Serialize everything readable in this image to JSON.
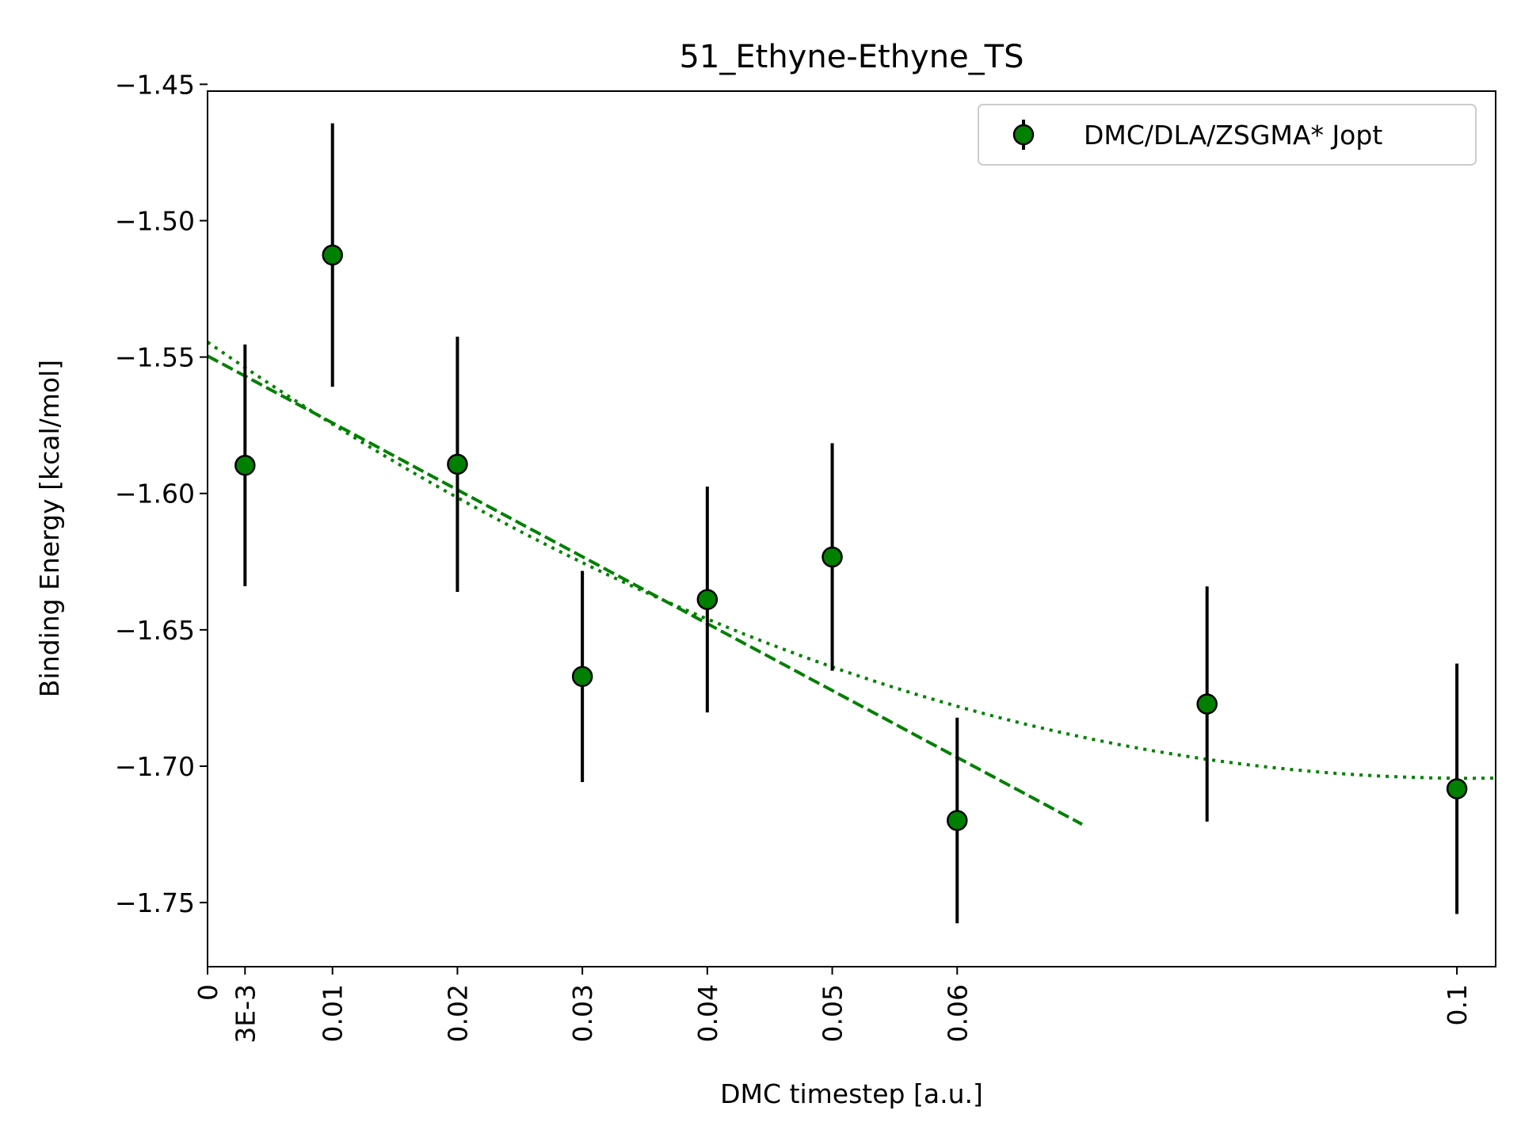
{
  "chart_data": {
    "type": "scatter",
    "title": "51_Ethyne-Ethyne_TS",
    "xlabel": "DMC timestep [a.u.]",
    "ylabel": "Binding Energy [kcal/mol]",
    "xlim": [
      0,
      0.1031
    ],
    "ylim": [
      -1.7735,
      -1.4525
    ],
    "x_ticks": [
      {
        "value": 0,
        "label": "0"
      },
      {
        "value": 0.003,
        "label": "3E-3"
      },
      {
        "value": 0.01,
        "label": "0.01"
      },
      {
        "value": 0.02,
        "label": "0.02"
      },
      {
        "value": 0.03,
        "label": "0.03"
      },
      {
        "value": 0.04,
        "label": "0.04"
      },
      {
        "value": 0.05,
        "label": "0.05"
      },
      {
        "value": 0.06,
        "label": "0.06"
      },
      {
        "value": 0.1,
        "label": "0.1"
      }
    ],
    "y_ticks": [
      {
        "value": -1.45,
        "label": "−1.45"
      },
      {
        "value": -1.5,
        "label": "−1.50"
      },
      {
        "value": -1.55,
        "label": "−1.55"
      },
      {
        "value": -1.6,
        "label": "−1.60"
      },
      {
        "value": -1.65,
        "label": "−1.65"
      },
      {
        "value": -1.7,
        "label": "−1.70"
      },
      {
        "value": -1.75,
        "label": "−1.75"
      }
    ],
    "grid": false,
    "legend": {
      "position": "top-right",
      "entries": [
        "DMC/DLA/ZSGMA* Jopt"
      ]
    },
    "series": [
      {
        "name": "DMC/DLA/ZSGMA* Jopt",
        "color": "#008000",
        "errorbar_color": "#000000",
        "points": [
          {
            "x": 0.003,
            "y": -1.5897,
            "err": 0.0443
          },
          {
            "x": 0.01,
            "y": -1.5126,
            "err": 0.0483
          },
          {
            "x": 0.02,
            "y": -1.5893,
            "err": 0.0468
          },
          {
            "x": 0.03,
            "y": -1.6671,
            "err": 0.0387
          },
          {
            "x": 0.04,
            "y": -1.6389,
            "err": 0.0414
          },
          {
            "x": 0.05,
            "y": -1.6233,
            "err": 0.0417
          },
          {
            "x": 0.06,
            "y": -1.7199,
            "err": 0.0377
          },
          {
            "x": 0.08,
            "y": -1.6772,
            "err": 0.0431
          },
          {
            "x": 0.1,
            "y": -1.7083,
            "err": 0.0459
          }
        ]
      }
    ],
    "fits": [
      {
        "kind": "linear",
        "style": "dashed",
        "color": "#008000",
        "x_range": [
          0,
          0.07
        ],
        "intercept": -1.5496,
        "slope": -2.453
      },
      {
        "kind": "quadratic",
        "style": "dotted",
        "color": "#008000",
        "x_range": [
          0,
          0.1031
        ],
        "a": -1.5445,
        "b": -3.165,
        "c": 15.66
      }
    ]
  }
}
